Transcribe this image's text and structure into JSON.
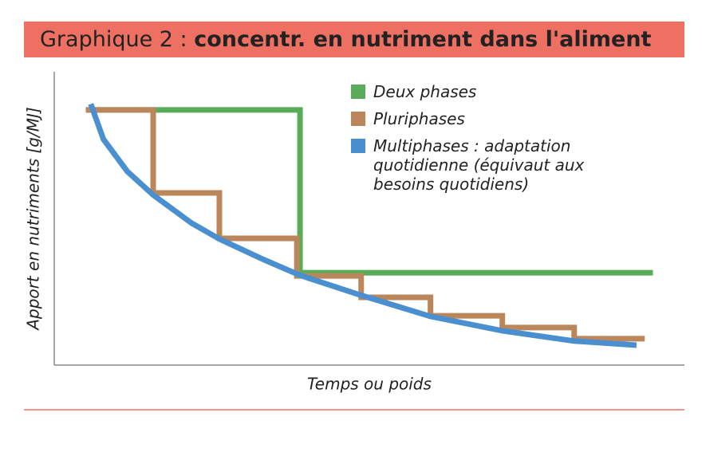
{
  "chart_data": {
    "type": "line",
    "title": {
      "label": "Graphique 2 :",
      "text": "concentr. en nutriment dans l'aliment"
    },
    "xlabel": "Temps ou poids",
    "ylabel": "Apport en nutriments [g/MJ]",
    "xlim": [
      0,
      100
    ],
    "ylim": [
      0,
      100
    ],
    "series": [
      {
        "name": "Deux phases",
        "color": "#5aac5a",
        "x": [
          5,
          39,
          39,
          95
        ],
        "values": [
          87,
          87,
          31.5,
          31.5
        ]
      },
      {
        "name": "Pluriphases",
        "color": "#bb875a",
        "x": [
          5,
          15.7,
          15.7,
          26.2,
          26.2,
          38.5,
          38.5,
          48.7,
          48.7,
          59.7,
          59.7,
          71.1,
          71.1,
          82.5,
          82.5,
          93.7
        ],
        "values": [
          87,
          87,
          58.7,
          58.7,
          43.2,
          43.2,
          30.4,
          30.4,
          23.1,
          23.1,
          16.8,
          16.8,
          12.8,
          12.8,
          9,
          9
        ]
      },
      {
        "name": "Multiphases : adaptation quotidienne (équivaut aux besoins quotidiens)",
        "color": "#4a8fcf",
        "x": [
          5.8,
          7.8,
          11.6,
          15.7,
          21.8,
          26.2,
          33.2,
          38.9,
          48.4,
          59.7,
          71.1,
          82.5,
          92.4
        ],
        "values": [
          89,
          77,
          66,
          58,
          48.4,
          43,
          36,
          30.7,
          24,
          16.6,
          11.7,
          8.2,
          6.8
        ]
      }
    ]
  }
}
